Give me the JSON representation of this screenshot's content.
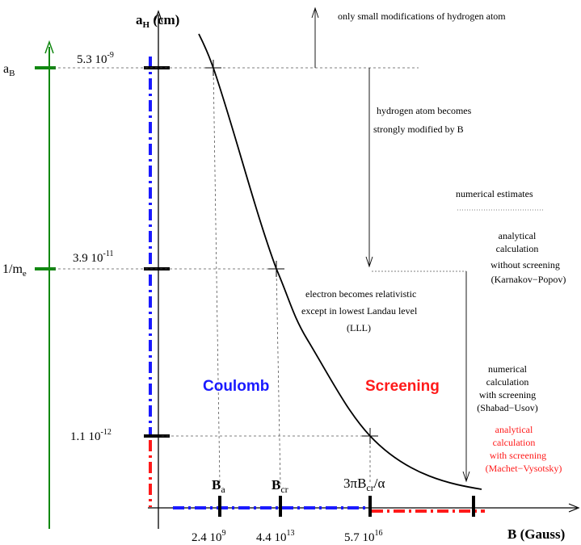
{
  "axes": {
    "y_label_main": "a",
    "y_label_sub": "H",
    "y_label_unit": " (cm)",
    "x_label": "B (Gauss)"
  },
  "y_ticks": [
    {
      "mantissa": "5.3 10",
      "exp": "-9"
    },
    {
      "mantissa": "3.9 10",
      "exp": "-11"
    },
    {
      "mantissa": "1.1 10",
      "exp": "-12"
    }
  ],
  "side_labels": {
    "aB_main": "a",
    "aB_sub": "B",
    "me_main": "1/m",
    "me_sub": "e"
  },
  "x_ticks": [
    {
      "mantissa": "2.4 10",
      "exp": "9"
    },
    {
      "mantissa": "4.4 10",
      "exp": "13"
    },
    {
      "mantissa": "5.7 10",
      "exp": "16"
    }
  ],
  "b_labels": {
    "ba_main": "B",
    "ba_sub": "a",
    "bcr_main": "B",
    "bcr_sub": "cr",
    "three_pi": "3πB",
    "three_pi_sub": "cr",
    "three_pi_tail": "/α"
  },
  "regions": {
    "coulomb": "Coulomb",
    "screening": "Screening"
  },
  "annotations": {
    "small_mod": "only small modifications of hydrogen atom",
    "strong_mod_1": "hydrogen atom becomes",
    "strong_mod_2": "strongly modified by B",
    "relativistic_1": "electron becomes relativistic",
    "relativistic_2": "except in lowest Landau level",
    "relativistic_3": "(LLL)",
    "numerical_estimates": "numerical estimates",
    "analytical_noscr_1": "analytical",
    "analytical_noscr_2": "calculation",
    "analytical_noscr_3": "without screening",
    "analytical_noscr_4": "(Karnakov−Popov)",
    "numerical_scr_1": "numerical",
    "numerical_scr_2": "calculation",
    "numerical_scr_3": "with screening",
    "numerical_scr_4": "(Shabad−Usov)",
    "analytical_scr_1": "analytical",
    "analytical_scr_2": "calculation",
    "analytical_scr_3": "with screening",
    "analytical_scr_4": "(Machet−Vysotsky)"
  },
  "colors": {
    "blue": "#1a1aff",
    "red": "#ff1a1a",
    "green": "#118811",
    "black": "#000000"
  }
}
